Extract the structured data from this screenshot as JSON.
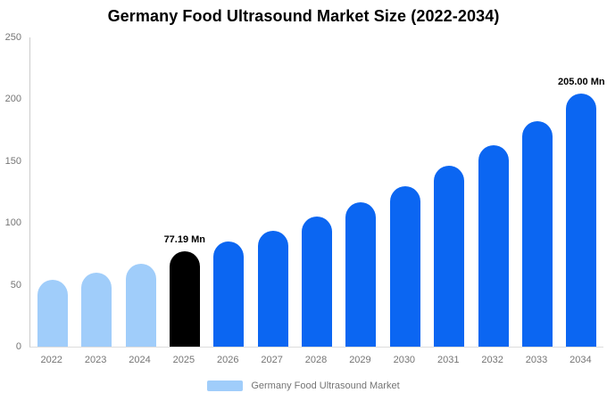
{
  "chart_data": {
    "type": "bar",
    "title": "Germany Food Ultrasound Market Size (2022-2034)",
    "xlabel": "",
    "ylabel": "",
    "categories": [
      "2022",
      "2023",
      "2024",
      "2025",
      "2026",
      "2027",
      "2028",
      "2029",
      "2030",
      "2031",
      "2032",
      "2033",
      "2034"
    ],
    "values": [
      54,
      60,
      67,
      77.19,
      85,
      94,
      105,
      117,
      130,
      146,
      163,
      182,
      205
    ],
    "unit": "Mn",
    "point_labels": [
      "",
      "",
      "",
      "77.19 Mn",
      "",
      "",
      "",
      "",
      "",
      "",
      "",
      "",
      "205.00 Mn"
    ],
    "point_colors": [
      "#a0cdfa",
      "#a0cdfa",
      "#a0cdfa",
      "#000000",
      "#0b66f2",
      "#0b66f2",
      "#0b66f2",
      "#0b66f2",
      "#0b66f2",
      "#0b66f2",
      "#0b66f2",
      "#0b66f2",
      "#0b66f2"
    ],
    "yticks": [
      0,
      50,
      100,
      150,
      200,
      250
    ],
    "ylim": [
      0,
      250
    ],
    "grid": "off",
    "legend_position": "bottom"
  },
  "legend": {
    "label": "Germany Food Ultrasound Market",
    "swatch_color": "#a0cdfa"
  },
  "colors": {
    "light_blue": "#a0cdfa",
    "highlight_blue": "#0b66f2",
    "highlight_black": "#000000",
    "axis_line": "#cccccc",
    "baseline": "#dddddd",
    "tick_text": "#757575",
    "title_text": "#000000",
    "value_label_text": "#000000"
  }
}
